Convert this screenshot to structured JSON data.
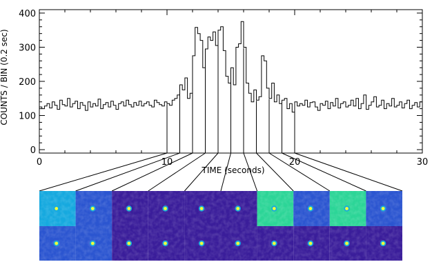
{
  "chart_data": {
    "type": "line",
    "step": true,
    "title": "",
    "xlabel": "TIME (seconds)",
    "ylabel": "COUNTS / BIN (0.2 sec)",
    "xlim": [
      0,
      30
    ],
    "ylim": [
      -10,
      410
    ],
    "xticks": [
      0,
      10,
      20,
      30
    ],
    "yticks": [
      0,
      100,
      200,
      300,
      400
    ],
    "bin_width": 0.2,
    "series": [
      {
        "values": [
          125,
          120,
          128,
          135,
          122,
          140,
          130,
          118,
          145,
          132,
          128,
          150,
          125,
          135,
          142,
          120,
          138,
          130,
          115,
          140,
          125,
          135,
          128,
          148,
          120,
          132,
          138,
          125,
          142,
          130,
          118,
          135,
          140,
          128,
          145,
          132,
          125,
          138,
          130,
          142,
          128,
          135,
          140,
          130,
          125,
          145,
          138,
          132,
          128,
          140,
          135,
          130,
          145,
          150,
          160,
          190,
          175,
          210,
          150,
          165,
          275,
          358,
          340,
          320,
          240,
          295,
          330,
          320,
          345,
          305,
          350,
          360,
          290,
          215,
          195,
          240,
          190,
          300,
          310,
          375,
          300,
          195,
          165,
          140,
          175,
          145,
          155,
          275,
          260,
          180,
          150,
          195,
          140,
          160,
          135,
          145,
          150,
          120,
          135,
          110,
          140,
          128,
          135,
          130,
          145,
          125,
          138,
          140,
          125,
          115,
          135,
          130,
          142,
          120,
          138,
          128,
          150,
          122,
          135,
          140,
          125,
          130,
          145,
          128,
          150,
          120,
          135,
          160,
          118,
          130,
          140,
          155,
          125,
          130,
          145,
          120,
          135,
          128,
          150,
          125,
          130,
          140,
          122,
          135,
          145,
          120,
          130,
          138,
          125,
          140
        ]
      }
    ],
    "interval_marks": [
      10.0,
      11.0,
      12.0,
      13.0,
      14.0,
      15.0,
      16.0,
      17.0,
      18.0,
      19.0,
      20.0
    ]
  },
  "images": {
    "panels": [
      {
        "top": "cyan",
        "bottom": "blue"
      },
      {
        "top": "blue",
        "bottom": "blue"
      },
      {
        "top": "violet",
        "bottom": "violet"
      },
      {
        "top": "violet",
        "bottom": "violet"
      },
      {
        "top": "violet",
        "bottom": "violet"
      },
      {
        "top": "violet",
        "bottom": "violet"
      },
      {
        "top": "green",
        "bottom": "violet"
      },
      {
        "top": "blue",
        "bottom": "violet"
      },
      {
        "top": "green",
        "bottom": "violet"
      },
      {
        "top": "blue",
        "bottom": "violet"
      }
    ]
  },
  "colors": {
    "violet": "#3a1d9a",
    "blue": "#2b55d0",
    "cyan": "#16a9df",
    "green": "#2cd597",
    "source": "#f0ff3a",
    "line": "#000000"
  }
}
